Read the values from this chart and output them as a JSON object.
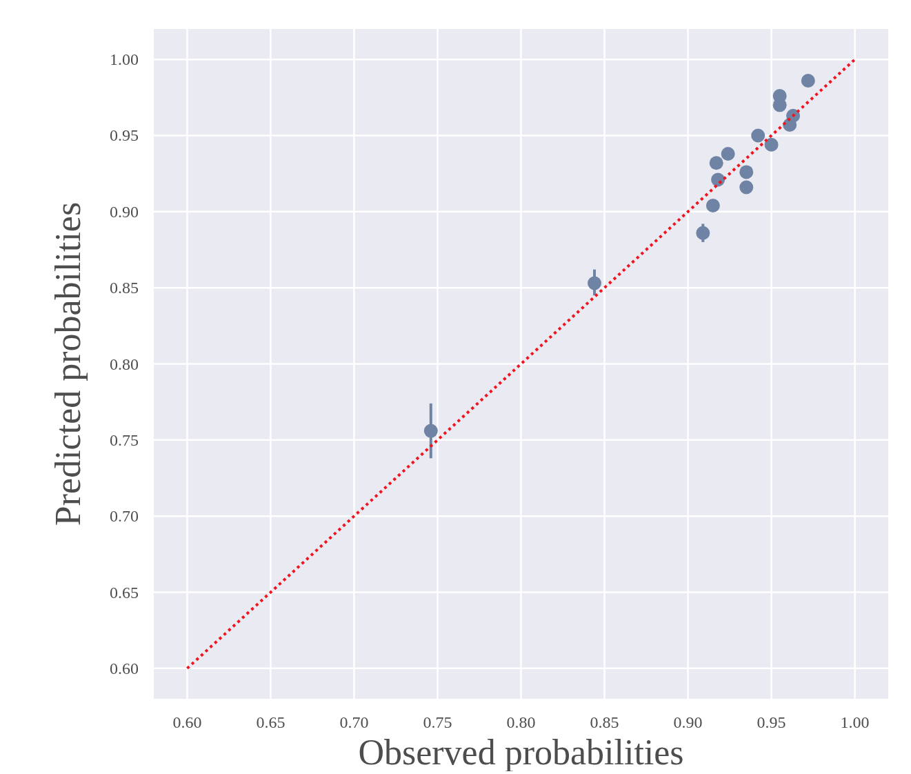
{
  "chart_data": {
    "type": "scatter",
    "xlabel": "Observed probabilities",
    "ylabel": "Predicted probabilities",
    "xlim": [
      0.58,
      1.02
    ],
    "ylim": [
      0.58,
      1.02
    ],
    "xticks": [
      {
        "value": 0.6,
        "label": "0.60"
      },
      {
        "value": 0.65,
        "label": "0.65"
      },
      {
        "value": 0.7,
        "label": "0.70"
      },
      {
        "value": 0.75,
        "label": "0.75"
      },
      {
        "value": 0.8,
        "label": "0.80"
      },
      {
        "value": 0.85,
        "label": "0.85"
      },
      {
        "value": 0.9,
        "label": "0.90"
      },
      {
        "value": 0.95,
        "label": "0.95"
      },
      {
        "value": 1,
        "label": "1.00"
      }
    ],
    "yticks": [
      {
        "value": 0.6,
        "label": "0.60"
      },
      {
        "value": 0.65,
        "label": "0.65"
      },
      {
        "value": 0.7,
        "label": "0.70"
      },
      {
        "value": 0.75,
        "label": "0.75"
      },
      {
        "value": 0.8,
        "label": "0.80"
      },
      {
        "value": 0.85,
        "label": "0.85"
      },
      {
        "value": 0.9,
        "label": "0.90"
      },
      {
        "value": 0.95,
        "label": "0.95"
      },
      {
        "value": 1,
        "label": "1.00"
      }
    ],
    "grid": true,
    "series": [
      {
        "color": "#6f83a4",
        "marker": "circle",
        "x": [
          0.746,
          0.844,
          0.909,
          0.915,
          0.917,
          0.918,
          0.924,
          0.935,
          0.935,
          0.942,
          0.95,
          0.955,
          0.955,
          0.961,
          0.963,
          0.972
        ],
        "values": [
          0.756,
          0.853,
          0.886,
          0.904,
          0.932,
          0.921,
          0.938,
          0.926,
          0.916,
          0.95,
          0.944,
          0.976,
          0.97,
          0.957,
          0.963,
          0.986
        ],
        "errors": [
          [
            0.738,
            0.774
          ],
          [
            0.845,
            0.862
          ],
          [
            0.88,
            0.892
          ],
          [
            0.9,
            0.908
          ],
          [
            0.928,
            0.936
          ],
          [
            0.917,
            0.925
          ],
          [
            0.935,
            0.941
          ],
          [
            0.922,
            0.93
          ],
          [
            0.912,
            0.92
          ],
          [
            0.947,
            0.953
          ],
          [
            0.941,
            0.947
          ],
          null,
          null,
          [
            0.954,
            0.96
          ],
          null,
          [
            0.983,
            0.989
          ]
        ]
      },
      {
        "type": "line",
        "color": "#f0141e",
        "line_style": "dotted",
        "marker": "none",
        "x": [
          0.6,
          1.0
        ],
        "values": [
          0.6,
          1.0
        ]
      }
    ]
  }
}
